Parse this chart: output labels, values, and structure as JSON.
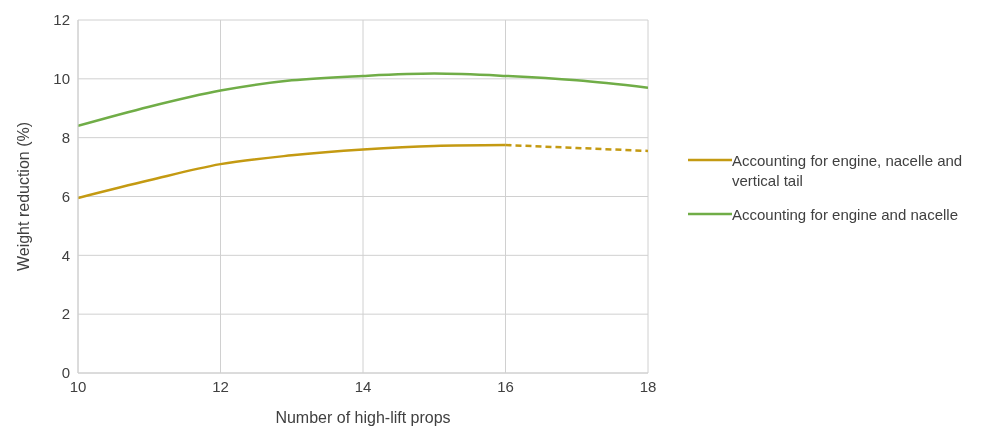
{
  "chart_data": {
    "type": "line",
    "xlabel": "Number of high-lift props",
    "ylabel": "Weight reduction (%)",
    "xlim": [
      10,
      18
    ],
    "xticks": [
      10,
      12,
      14,
      16,
      18
    ],
    "ylim": [
      0,
      12
    ],
    "yticks": [
      0,
      2,
      4,
      6,
      8,
      10,
      12
    ],
    "grid": true,
    "legend": "right",
    "marker": "none",
    "series": [
      {
        "name": "Accounting for engine, nacelle and vertical tail",
        "color": "#c49a12",
        "line_style": "solid",
        "x": [
          10,
          11,
          12,
          13,
          14,
          15,
          16
        ],
        "values": [
          5.95,
          6.55,
          7.1,
          7.4,
          7.6,
          7.72,
          7.75
        ]
      },
      {
        "color": "#c49a12",
        "line_style": "dashed",
        "x": [
          16,
          17,
          18
        ],
        "values": [
          7.75,
          7.65,
          7.55
        ]
      },
      {
        "name": "Accounting for engine and nacelle",
        "color": "#70ad47",
        "line_style": "solid",
        "x": [
          10,
          11,
          12,
          13,
          14,
          15,
          16,
          17,
          18
        ],
        "values": [
          8.4,
          9.05,
          9.6,
          9.95,
          10.1,
          10.18,
          10.1,
          9.95,
          9.7
        ]
      }
    ]
  }
}
